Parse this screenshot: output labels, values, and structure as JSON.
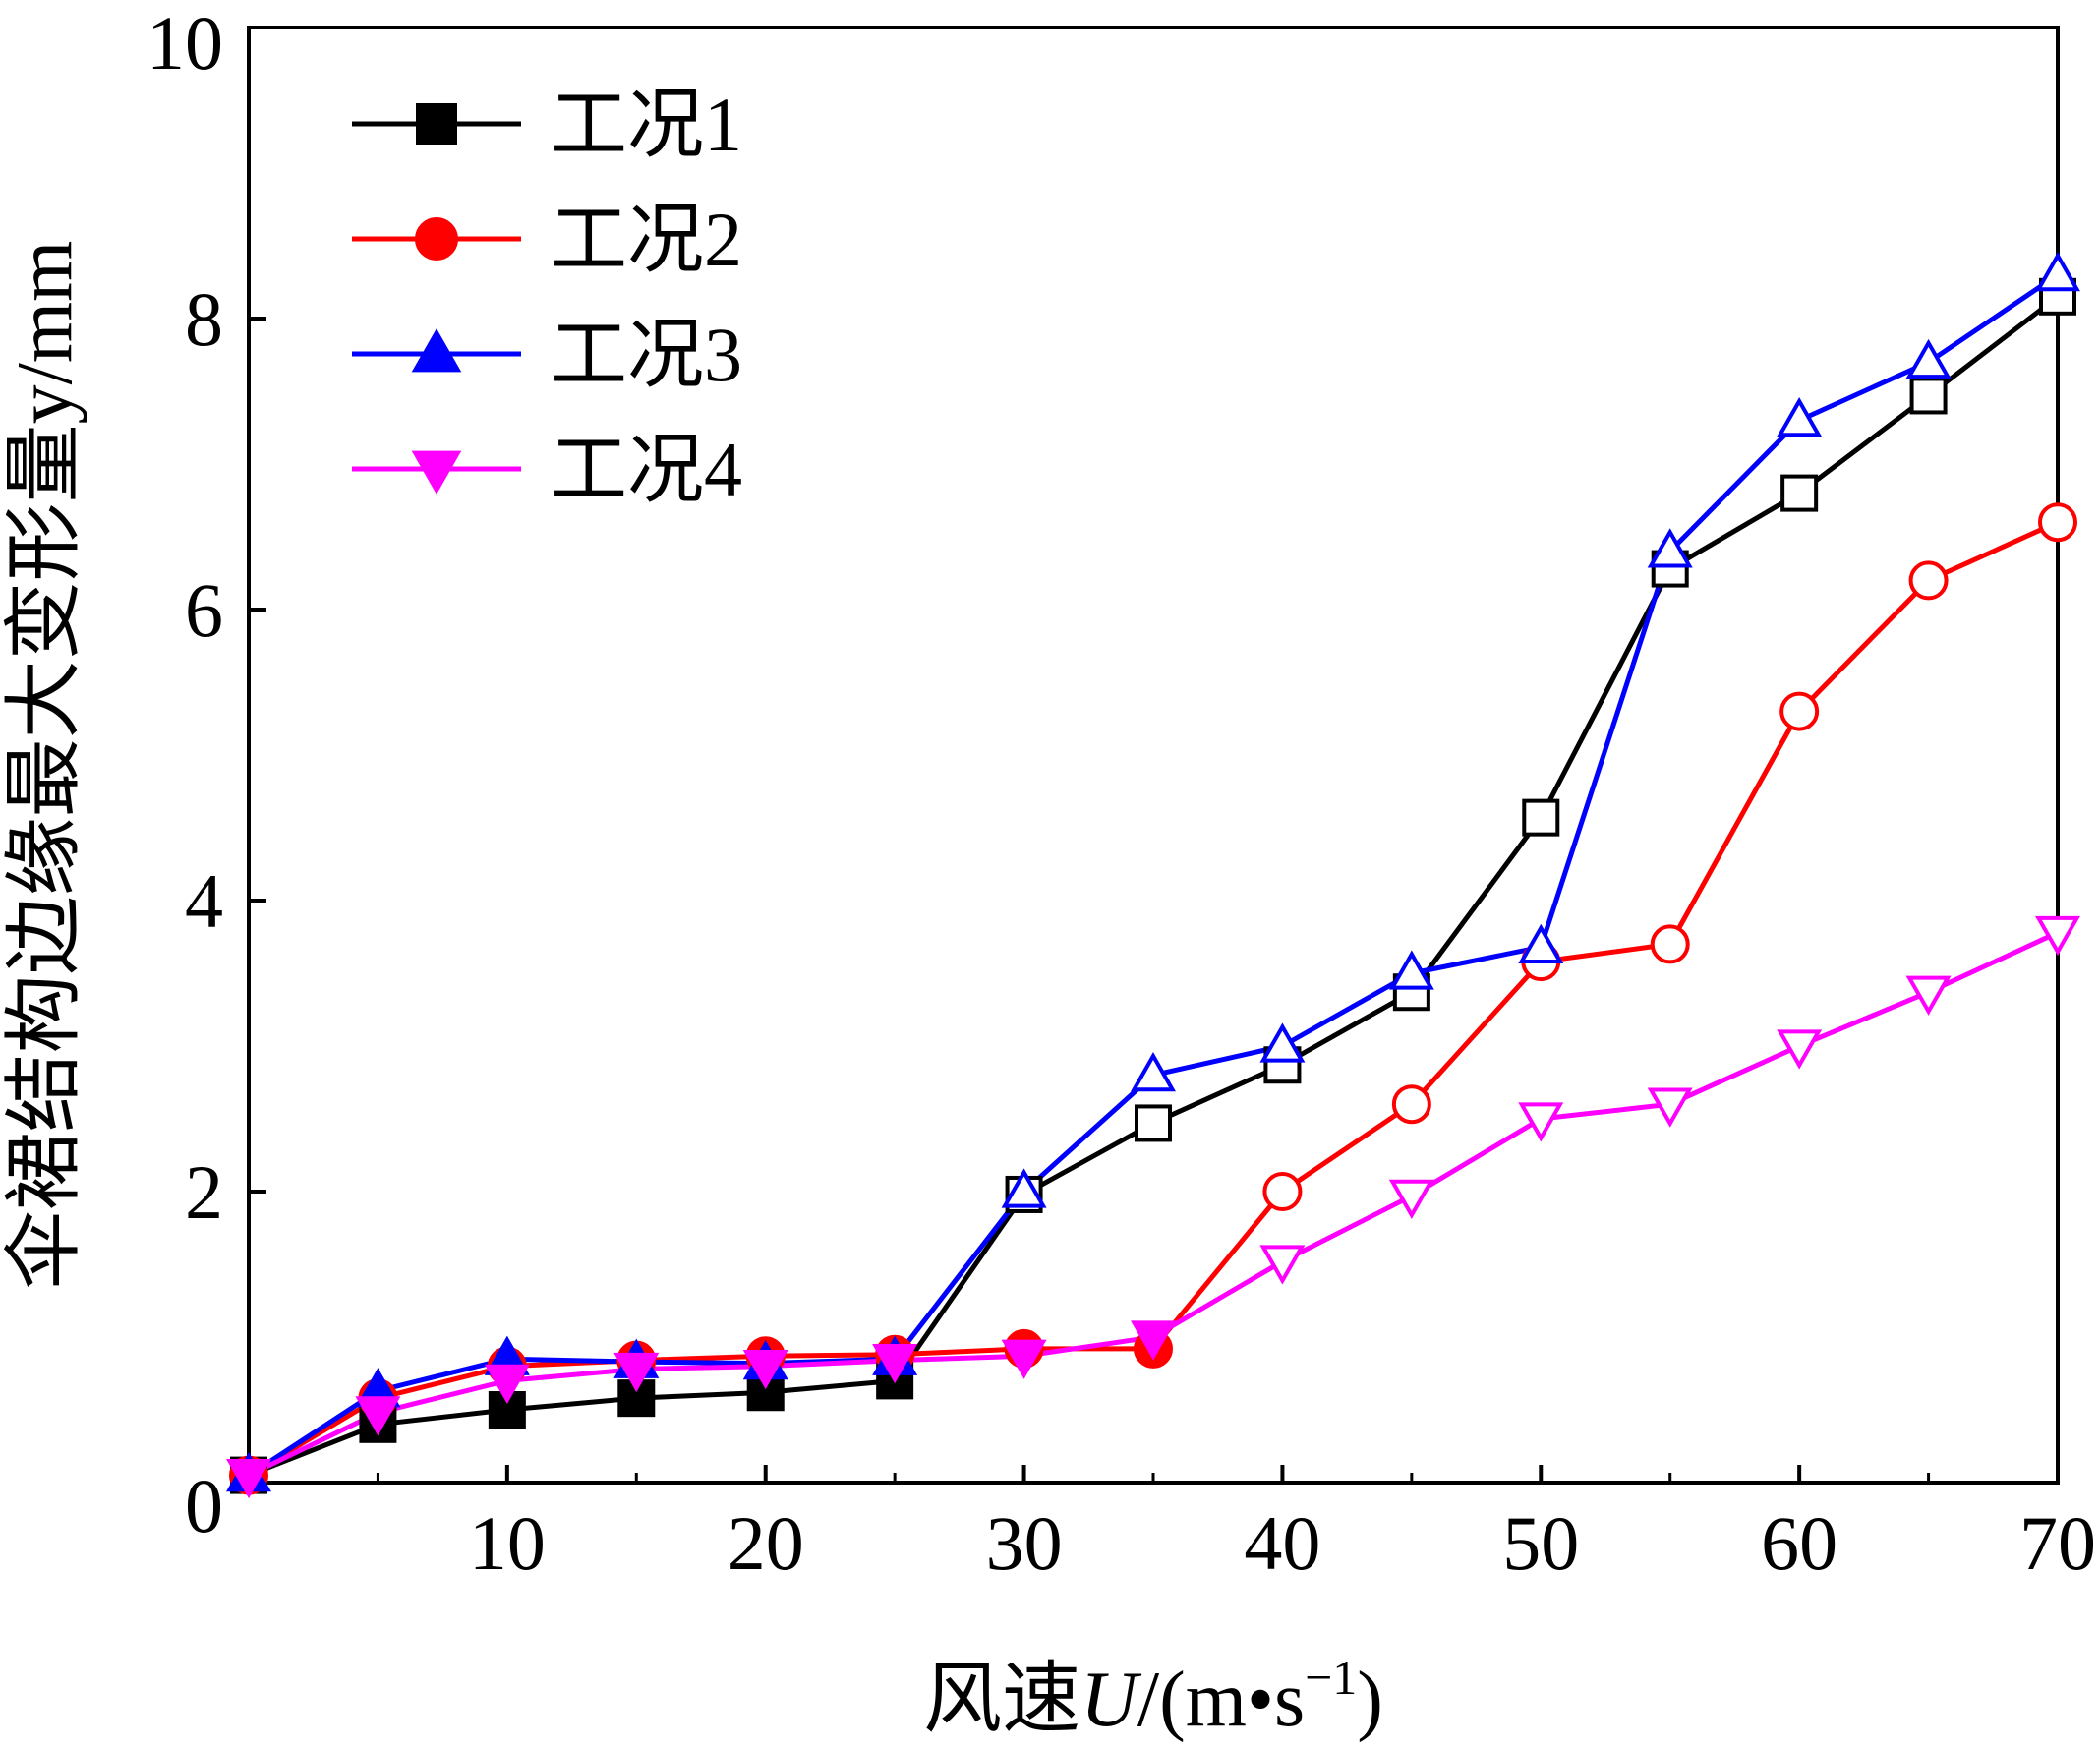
{
  "chart_data": {
    "type": "line",
    "title": "",
    "xlabel": {
      "prefix": "风速",
      "variable": "U",
      "unit_open": "/(m•s",
      "unit_exp": "−1",
      "unit_close": ")"
    },
    "ylabel": "伞裙结构边缘最大变形量y/mm",
    "xlim": [
      0,
      70
    ],
    "ylim": [
      0,
      10
    ],
    "xticks": [
      10,
      20,
      30,
      40,
      50,
      60,
      70
    ],
    "yticks": [
      0,
      2,
      4,
      6,
      8,
      10
    ],
    "grid": false,
    "legend_position": "top-left",
    "x": [
      0,
      5,
      10,
      15,
      20,
      25,
      30,
      35,
      40,
      45,
      50,
      55,
      60,
      65,
      70
    ],
    "series": [
      {
        "name": "工况1",
        "color": "#000000",
        "marker": "square",
        "legend_marker_filled": true,
        "filled_until": 25,
        "values": [
          0.05,
          0.4,
          0.5,
          0.58,
          0.62,
          0.7,
          1.98,
          2.47,
          2.87,
          3.37,
          4.57,
          6.28,
          6.8,
          7.47,
          8.15
        ]
      },
      {
        "name": "工况2",
        "color": "#ff0000",
        "marker": "circle",
        "legend_marker_filled": true,
        "filled_until": 35,
        "values": [
          0.05,
          0.58,
          0.8,
          0.84,
          0.87,
          0.88,
          0.92,
          0.92,
          2.0,
          2.6,
          3.58,
          3.7,
          5.3,
          6.2,
          6.6
        ]
      },
      {
        "name": "工况3",
        "color": "#0000ff",
        "marker": "triangle-up",
        "legend_marker_filled": true,
        "filled_until": 25,
        "values": [
          0.05,
          0.63,
          0.85,
          0.83,
          0.82,
          0.85,
          2.0,
          2.8,
          3.0,
          3.5,
          3.68,
          6.4,
          7.3,
          7.7,
          8.3
        ]
      },
      {
        "name": "工况4",
        "color": "#ff00ff",
        "marker": "triangle-down",
        "legend_marker_filled": true,
        "filled_until": 35,
        "values": [
          0.05,
          0.48,
          0.7,
          0.78,
          0.8,
          0.84,
          0.87,
          1.0,
          1.52,
          1.97,
          2.5,
          2.6,
          3.0,
          3.37,
          3.78
        ]
      }
    ]
  }
}
